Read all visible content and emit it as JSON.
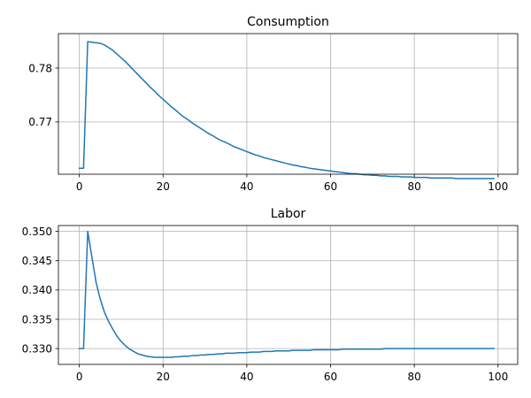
{
  "chart_data": [
    {
      "type": "line",
      "title": "Consumption",
      "xlabel": "",
      "ylabel": "",
      "grid": true,
      "xlim": [
        -5,
        104.7
      ],
      "ylim": [
        0.7603,
        0.7864
      ],
      "xticks": [
        0,
        20,
        40,
        60,
        80,
        100
      ],
      "yticks": [
        0.77,
        0.78
      ],
      "ytick_labels": [
        "0.77",
        "0.78"
      ],
      "series": [
        {
          "color": "#1f77b4",
          "x": [
            0,
            1,
            2,
            3,
            4,
            5,
            6,
            7,
            8,
            9,
            10,
            11,
            12,
            13,
            14,
            15,
            16,
            17,
            18,
            19,
            20,
            21,
            22,
            23,
            24,
            25,
            26,
            27,
            28,
            29,
            30,
            31,
            32,
            33,
            34,
            35,
            36,
            37,
            38,
            39,
            40,
            41,
            42,
            43,
            44,
            45,
            46,
            47,
            48,
            49,
            50,
            51,
            52,
            53,
            54,
            55,
            56,
            57,
            58,
            59,
            60,
            61,
            62,
            63,
            64,
            65,
            66,
            67,
            68,
            69,
            70,
            71,
            72,
            73,
            74,
            75,
            76,
            77,
            78,
            79,
            80,
            81,
            82,
            83,
            84,
            85,
            86,
            87,
            88,
            89,
            90,
            91,
            92,
            93,
            94,
            95,
            96,
            97,
            98,
            99
          ],
          "y": [
            0.7614,
            0.7614,
            0.7849,
            0.7848,
            0.7847,
            0.7846,
            0.7843,
            0.7838,
            0.7833,
            0.7826,
            0.7819,
            0.7812,
            0.7804,
            0.7796,
            0.7788,
            0.778,
            0.7772,
            0.7764,
            0.7757,
            0.7749,
            0.7742,
            0.7735,
            0.7728,
            0.7722,
            0.7715,
            0.7709,
            0.7704,
            0.7698,
            0.7693,
            0.7688,
            0.7683,
            0.7678,
            0.7674,
            0.7669,
            0.7665,
            0.7662,
            0.7658,
            0.7654,
            0.7651,
            0.7648,
            0.7645,
            0.7642,
            0.7639,
            0.7637,
            0.7634,
            0.7632,
            0.763,
            0.7628,
            0.7626,
            0.7624,
            0.7622,
            0.762,
            0.7619,
            0.7617,
            0.7616,
            0.7614,
            0.7613,
            0.7612,
            0.7611,
            0.761,
            0.7609,
            0.7608,
            0.7607,
            0.7606,
            0.7605,
            0.7604,
            0.7604,
            0.7603,
            0.7602,
            0.7602,
            0.7601,
            0.7601,
            0.76,
            0.76,
            0.7599,
            0.7599,
            0.7599,
            0.7598,
            0.7598,
            0.7598,
            0.7597,
            0.7597,
            0.7597,
            0.7597,
            0.7596,
            0.7596,
            0.7596,
            0.7596,
            0.7596,
            0.7596,
            0.7595,
            0.7595,
            0.7595,
            0.7595,
            0.7595,
            0.7595,
            0.7595,
            0.7595,
            0.7595,
            0.7595
          ]
        }
      ]
    },
    {
      "type": "line",
      "title": "Labor",
      "xlabel": "",
      "ylabel": "",
      "grid": true,
      "xlim": [
        -5,
        104.7
      ],
      "ylim": [
        0.3273,
        0.351
      ],
      "xticks": [
        0,
        20,
        40,
        60,
        80,
        100
      ],
      "yticks": [
        0.33,
        0.335,
        0.34,
        0.345,
        0.35
      ],
      "ytick_labels": [
        "0.330",
        "0.335",
        "0.340",
        "0.345",
        "0.350"
      ],
      "series": [
        {
          "color": "#1f77b4",
          "x": [
            0,
            1,
            2,
            3,
            4,
            5,
            6,
            7,
            8,
            9,
            10,
            11,
            12,
            13,
            14,
            15,
            16,
            17,
            18,
            19,
            20,
            21,
            22,
            23,
            24,
            25,
            26,
            27,
            28,
            29,
            30,
            31,
            32,
            33,
            34,
            35,
            36,
            37,
            38,
            39,
            40,
            41,
            42,
            43,
            44,
            45,
            46,
            47,
            48,
            49,
            50,
            51,
            52,
            53,
            54,
            55,
            56,
            57,
            58,
            59,
            60,
            61,
            62,
            63,
            64,
            65,
            66,
            67,
            68,
            69,
            70,
            71,
            72,
            73,
            74,
            75,
            76,
            77,
            78,
            79,
            80,
            81,
            82,
            83,
            84,
            85,
            86,
            87,
            88,
            89,
            90,
            91,
            92,
            93,
            94,
            95,
            96,
            97,
            98,
            99
          ],
          "y": [
            0.33,
            0.33,
            0.35,
            0.3456,
            0.3413,
            0.3384,
            0.3362,
            0.3346,
            0.3333,
            0.3321,
            0.3312,
            0.3305,
            0.3299,
            0.3295,
            0.3291,
            0.3289,
            0.3287,
            0.3286,
            0.3285,
            0.3285,
            0.3285,
            0.3285,
            0.3285,
            0.3286,
            0.3286,
            0.3287,
            0.3287,
            0.3288,
            0.3288,
            0.3289,
            0.3289,
            0.329,
            0.329,
            0.3291,
            0.3291,
            0.3292,
            0.3292,
            0.3292,
            0.3293,
            0.3293,
            0.3293,
            0.3294,
            0.3294,
            0.3294,
            0.3295,
            0.3295,
            0.3295,
            0.3296,
            0.3296,
            0.3296,
            0.3296,
            0.3297,
            0.3297,
            0.3297,
            0.3297,
            0.3297,
            0.3298,
            0.3298,
            0.3298,
            0.3298,
            0.3298,
            0.3298,
            0.3298,
            0.3299,
            0.3299,
            0.3299,
            0.3299,
            0.3299,
            0.3299,
            0.3299,
            0.3299,
            0.3299,
            0.3299,
            0.33,
            0.33,
            0.33,
            0.33,
            0.33,
            0.33,
            0.33,
            0.33,
            0.33,
            0.33,
            0.33,
            0.33,
            0.33,
            0.33,
            0.33,
            0.33,
            0.33,
            0.33,
            0.33,
            0.33,
            0.33,
            0.33,
            0.33,
            0.33,
            0.33,
            0.33,
            0.33
          ]
        }
      ]
    }
  ]
}
